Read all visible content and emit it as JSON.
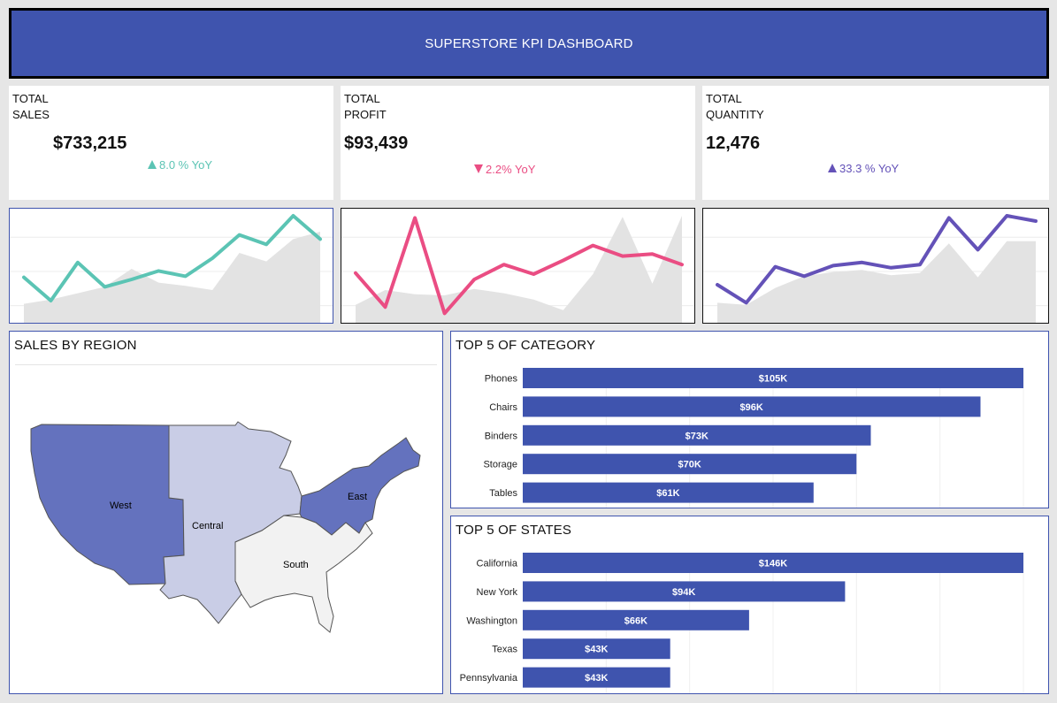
{
  "header": {
    "title": "SUPERSTORE KPI DASHBOARD"
  },
  "kpis": {
    "sales": {
      "label_line1": "TOTAL",
      "label_line2": "SALES",
      "value": "$733,215",
      "yoy": "8.0 % YoY",
      "trend": "up",
      "color": "#5bc4b4"
    },
    "profit": {
      "label_line1": "TOTAL",
      "label_line2": "PROFIT",
      "value": "$93,439",
      "yoy": "2.2% YoY",
      "trend": "down",
      "color": "#ea4d83"
    },
    "quantity": {
      "label_line1": "TOTAL",
      "label_line2": "QUANTITY",
      "value": "12,476",
      "yoy": "33.3 % YoY",
      "trend": "up",
      "color": "#6452b8"
    }
  },
  "region": {
    "title": "SALES BY REGION",
    "labels": {
      "west": "West",
      "central": "Central",
      "east": "East",
      "south": "South"
    },
    "colors": {
      "west": "#6472be",
      "central": "#c9cde6",
      "east": "#6472be",
      "south": "#f2f2f2"
    }
  },
  "chart_data": [
    {
      "type": "line",
      "name": "sales-sparkline",
      "x": [
        1,
        2,
        3,
        4,
        5,
        6,
        7,
        8,
        9,
        10,
        11,
        12
      ],
      "series": [
        {
          "values": [
            0.42,
            0.2,
            0.56,
            0.33,
            0.4,
            0.48,
            0.43,
            0.6,
            0.82,
            0.73,
            1.0,
            0.78
          ]
        },
        {
          "values": [
            0.17,
            0.21,
            0.27,
            0.33,
            0.5,
            0.37,
            0.34,
            0.3,
            0.65,
            0.57,
            0.78,
            0.85
          ]
        }
      ],
      "ylim": [
        0,
        1
      ]
    },
    {
      "type": "line",
      "name": "profit-sparkline",
      "x": [
        1,
        2,
        3,
        4,
        5,
        6,
        7,
        8,
        9,
        10,
        11,
        12
      ],
      "series": [
        {
          "values": [
            0.46,
            0.14,
            0.98,
            0.08,
            0.4,
            0.54,
            0.45,
            0.58,
            0.72,
            0.62,
            0.64,
            0.54
          ]
        },
        {
          "values": [
            0.16,
            0.3,
            0.26,
            0.25,
            0.31,
            0.27,
            0.21,
            0.11,
            0.45,
            0.99,
            0.36,
            1.0
          ]
        }
      ],
      "ylim": [
        0,
        1
      ]
    },
    {
      "type": "line",
      "name": "quantity-sparkline",
      "x": [
        1,
        2,
        3,
        4,
        5,
        6,
        7,
        8,
        9,
        10,
        11,
        12
      ],
      "series": [
        {
          "values": [
            0.35,
            0.18,
            0.52,
            0.43,
            0.53,
            0.56,
            0.51,
            0.54,
            0.98,
            0.68,
            1.0,
            0.95
          ]
        },
        {
          "values": [
            0.18,
            0.16,
            0.32,
            0.43,
            0.47,
            0.49,
            0.44,
            0.46,
            0.74,
            0.42,
            0.76,
            0.76
          ]
        }
      ],
      "ylim": [
        0,
        1
      ]
    },
    {
      "type": "bar",
      "name": "top5-category",
      "title": "TOP 5 OF CATEGORY",
      "categories": [
        "Phones",
        "Chairs",
        "Binders",
        "Storage",
        "Tables"
      ],
      "values": [
        105,
        96,
        73,
        70,
        61
      ],
      "labels": [
        "$105K",
        "$96K",
        "$73K",
        "$70K",
        "$61K"
      ],
      "xlim": [
        0,
        105
      ]
    },
    {
      "type": "bar",
      "name": "top5-states",
      "title": "TOP 5 OF STATES",
      "categories": [
        "California",
        "New York",
        "Washington",
        "Texas",
        "Pennsylvania"
      ],
      "values": [
        146,
        94,
        66,
        43,
        43
      ],
      "labels": [
        "$146K",
        "$94K",
        "$66K",
        "$43K",
        "$43K"
      ],
      "xlim": [
        0,
        146
      ]
    }
  ]
}
